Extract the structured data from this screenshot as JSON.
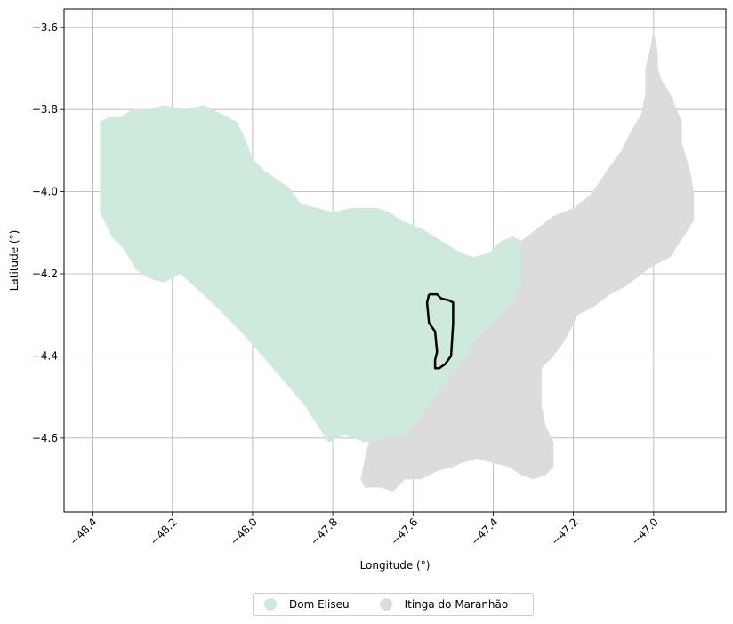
{
  "map": {
    "xlabel": "Longitude (°)",
    "ylabel": "Latitude (°)",
    "xlim": [
      -48.47,
      -46.82
    ],
    "ylim": [
      -4.78,
      -3.555
    ],
    "xticks": [
      -48.4,
      -48.2,
      -48.0,
      -47.8,
      -47.6,
      -47.4,
      -47.2,
      -47.0
    ],
    "yticks": [
      -3.6,
      -3.8,
      -4.0,
      -4.2,
      -4.4,
      -4.6
    ],
    "xtick_labels": [
      "−48.4",
      "−48.2",
      "−48.0",
      "−47.8",
      "−47.6",
      "−47.4",
      "−47.2",
      "−47.0"
    ],
    "ytick_labels": [
      "−3.6",
      "−3.8",
      "−4.0",
      "−4.2",
      "−4.4",
      "−4.6"
    ],
    "grid": true,
    "regions": [
      {
        "name": "Dom Eliseu",
        "color": "#cdeadc",
        "polygon": [
          [
            -48.38,
            -3.83
          ],
          [
            -48.36,
            -3.82
          ],
          [
            -48.33,
            -3.82
          ],
          [
            -48.3,
            -3.8
          ],
          [
            -48.26,
            -3.8
          ],
          [
            -48.22,
            -3.79
          ],
          [
            -48.17,
            -3.8
          ],
          [
            -48.12,
            -3.79
          ],
          [
            -48.08,
            -3.81
          ],
          [
            -48.04,
            -3.83
          ],
          [
            -48.02,
            -3.87
          ],
          [
            -48.0,
            -3.92
          ],
          [
            -47.97,
            -3.95
          ],
          [
            -47.94,
            -3.97
          ],
          [
            -47.91,
            -3.99
          ],
          [
            -47.88,
            -4.03
          ],
          [
            -47.84,
            -4.04
          ],
          [
            -47.8,
            -4.05
          ],
          [
            -47.75,
            -4.04
          ],
          [
            -47.72,
            -4.04
          ],
          [
            -47.69,
            -4.04
          ],
          [
            -47.66,
            -4.05
          ],
          [
            -47.63,
            -4.07
          ],
          [
            -47.58,
            -4.09
          ],
          [
            -47.53,
            -4.12
          ],
          [
            -47.48,
            -4.15
          ],
          [
            -47.45,
            -4.16
          ],
          [
            -47.41,
            -4.15
          ],
          [
            -47.38,
            -4.12
          ],
          [
            -47.35,
            -4.11
          ],
          [
            -47.33,
            -4.12
          ],
          [
            -47.33,
            -4.17
          ],
          [
            -47.33,
            -4.22
          ],
          [
            -47.35,
            -4.27
          ],
          [
            -47.4,
            -4.32
          ],
          [
            -47.44,
            -4.36
          ],
          [
            -47.48,
            -4.42
          ],
          [
            -47.53,
            -4.48
          ],
          [
            -47.58,
            -4.55
          ],
          [
            -47.62,
            -4.59
          ],
          [
            -47.67,
            -4.6
          ],
          [
            -47.72,
            -4.61
          ],
          [
            -47.77,
            -4.59
          ],
          [
            -47.81,
            -4.61
          ],
          [
            -47.87,
            -4.52
          ],
          [
            -47.94,
            -4.44
          ],
          [
            -48.02,
            -4.35
          ],
          [
            -48.1,
            -4.27
          ],
          [
            -48.18,
            -4.2
          ],
          [
            -48.22,
            -4.22
          ],
          [
            -48.26,
            -4.21
          ],
          [
            -48.29,
            -4.19
          ],
          [
            -48.32,
            -4.14
          ],
          [
            -48.35,
            -4.11
          ],
          [
            -48.38,
            -4.05
          ],
          [
            -48.38,
            -3.99
          ],
          [
            -48.38,
            -3.91
          ],
          [
            -48.38,
            -3.85
          ]
        ]
      },
      {
        "name": "Itinga do Maranhão",
        "color": "#dcdcdc",
        "polygon": [
          [
            -47.0,
            -3.61
          ],
          [
            -46.99,
            -3.66
          ],
          [
            -46.99,
            -3.7
          ],
          [
            -46.98,
            -3.73
          ],
          [
            -46.96,
            -3.76
          ],
          [
            -46.93,
            -3.83
          ],
          [
            -46.93,
            -3.88
          ],
          [
            -46.91,
            -3.95
          ],
          [
            -46.9,
            -4.0
          ],
          [
            -46.9,
            -4.07
          ],
          [
            -46.92,
            -4.1
          ],
          [
            -46.94,
            -4.13
          ],
          [
            -46.96,
            -4.16
          ],
          [
            -47.0,
            -4.18
          ],
          [
            -47.03,
            -4.2
          ],
          [
            -47.07,
            -4.23
          ],
          [
            -47.11,
            -4.25
          ],
          [
            -47.15,
            -4.28
          ],
          [
            -47.19,
            -4.3
          ],
          [
            -47.22,
            -4.36
          ],
          [
            -47.25,
            -4.4
          ],
          [
            -47.28,
            -4.43
          ],
          [
            -47.28,
            -4.47
          ],
          [
            -47.28,
            -4.52
          ],
          [
            -47.27,
            -4.57
          ],
          [
            -47.25,
            -4.61
          ],
          [
            -47.25,
            -4.67
          ],
          [
            -47.27,
            -4.69
          ],
          [
            -47.3,
            -4.7
          ],
          [
            -47.33,
            -4.69
          ],
          [
            -47.36,
            -4.67
          ],
          [
            -47.4,
            -4.66
          ],
          [
            -47.44,
            -4.65
          ],
          [
            -47.48,
            -4.66
          ],
          [
            -47.5,
            -4.67
          ],
          [
            -47.54,
            -4.68
          ],
          [
            -47.58,
            -4.7
          ],
          [
            -47.62,
            -4.7
          ],
          [
            -47.65,
            -4.73
          ],
          [
            -47.68,
            -4.72
          ],
          [
            -47.72,
            -4.72
          ],
          [
            -47.73,
            -4.7
          ],
          [
            -47.72,
            -4.65
          ],
          [
            -47.71,
            -4.61
          ],
          [
            -47.67,
            -4.6
          ],
          [
            -47.62,
            -4.59
          ],
          [
            -47.58,
            -4.55
          ],
          [
            -47.53,
            -4.48
          ],
          [
            -47.48,
            -4.42
          ],
          [
            -47.44,
            -4.36
          ],
          [
            -47.4,
            -4.32
          ],
          [
            -47.35,
            -4.27
          ],
          [
            -47.33,
            -4.22
          ],
          [
            -47.33,
            -4.17
          ],
          [
            -47.33,
            -4.12
          ],
          [
            -47.29,
            -4.09
          ],
          [
            -47.25,
            -4.06
          ],
          [
            -47.2,
            -4.04
          ],
          [
            -47.16,
            -4.01
          ],
          [
            -47.13,
            -3.97
          ],
          [
            -47.11,
            -3.94
          ],
          [
            -47.08,
            -3.9
          ],
          [
            -47.06,
            -3.86
          ],
          [
            -47.03,
            -3.81
          ],
          [
            -47.02,
            -3.76
          ],
          [
            -47.02,
            -3.7
          ],
          [
            -47.01,
            -3.66
          ]
        ]
      }
    ],
    "outline": [
      [
        -47.56,
        -4.25
      ],
      [
        -47.54,
        -4.25
      ],
      [
        -47.53,
        -4.26
      ],
      [
        -47.51,
        -4.265
      ],
      [
        -47.5,
        -4.27
      ],
      [
        -47.5,
        -4.32
      ],
      [
        -47.505,
        -4.4
      ],
      [
        -47.52,
        -4.42
      ],
      [
        -47.535,
        -4.43
      ],
      [
        -47.545,
        -4.43
      ],
      [
        -47.545,
        -4.41
      ],
      [
        -47.54,
        -4.39
      ],
      [
        -47.545,
        -4.34
      ],
      [
        -47.56,
        -4.32
      ],
      [
        -47.565,
        -4.27
      ],
      [
        -47.56,
        -4.25
      ]
    ],
    "outline_color": "#000000",
    "legend": {
      "placement": "bottom-center",
      "items": [
        {
          "label": "Dom Eliseu",
          "color": "#cdeadc"
        },
        {
          "label": "Itinga do Maranhão",
          "color": "#dcdcdc"
        }
      ]
    }
  }
}
